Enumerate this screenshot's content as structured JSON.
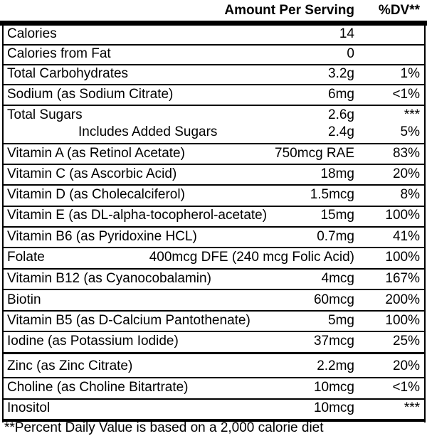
{
  "header": {
    "amount": "Amount Per Serving",
    "dv": "%DV**"
  },
  "rows": [
    {
      "name": "Calories",
      "amount": "14"
    },
    {
      "name": "Calories from Fat",
      "amount": "0"
    },
    {
      "name": "Total Carbohydrates",
      "amount": "3.2g",
      "dv": "1%"
    },
    {
      "name": "Sodium (as Sodium Citrate)",
      "amount": "6mg",
      "dv": "<1%"
    },
    {
      "name": "Total Sugars",
      "amount": "2.6g",
      "dv": "***"
    },
    {
      "name": "Includes Added Sugars",
      "amount": "2.4g",
      "dv": "5%"
    },
    {
      "name": "Vitamin A (as Retinol Acetate)",
      "amount": "750mcg RAE",
      "dv": "83%"
    },
    {
      "name": "Vitamin C (as Ascorbic Acid)",
      "amount": "18mg",
      "dv": "20%"
    },
    {
      "name": "Vitamin D (as Cholecalciferol)",
      "amount": "1.5mcg",
      "dv": "8%"
    },
    {
      "name": "Vitamin E (as DL-alpha-tocopherol-acetate)",
      "amount": "15mg",
      "dv": "100%"
    },
    {
      "name": "Vitamin B6 (as Pyridoxine HCL)",
      "amount": "0.7mg",
      "dv": "41%"
    },
    {
      "name": "Folate",
      "amount": "400mcg DFE (240 mcg Folic Acid)",
      "dv": "100%"
    },
    {
      "name": "Vitamin B12 (as Cyanocobalamin)",
      "amount": "4mcg",
      "dv": "167%"
    },
    {
      "name": "Biotin",
      "amount": "60mcg",
      "dv": "200%"
    },
    {
      "name": "Vitamin B5 (as D-Calcium Pantothenate)",
      "amount": "5mg",
      "dv": "100%"
    },
    {
      "name": "Iodine (as Potassium Iodide)",
      "amount": "37mcg",
      "dv": "25%"
    },
    {
      "name": "Zinc (as Zinc Citrate)",
      "amount": "2.2mg",
      "dv": "20%"
    },
    {
      "name": "Choline (as Choline Bitartrate)",
      "amount": "10mcg",
      "dv": "<1%"
    },
    {
      "name": "Inositol",
      "amount": "10mcg",
      "dv": "***"
    }
  ],
  "footnote": "**Percent Daily Value is based on a 2,000 calorie diet"
}
